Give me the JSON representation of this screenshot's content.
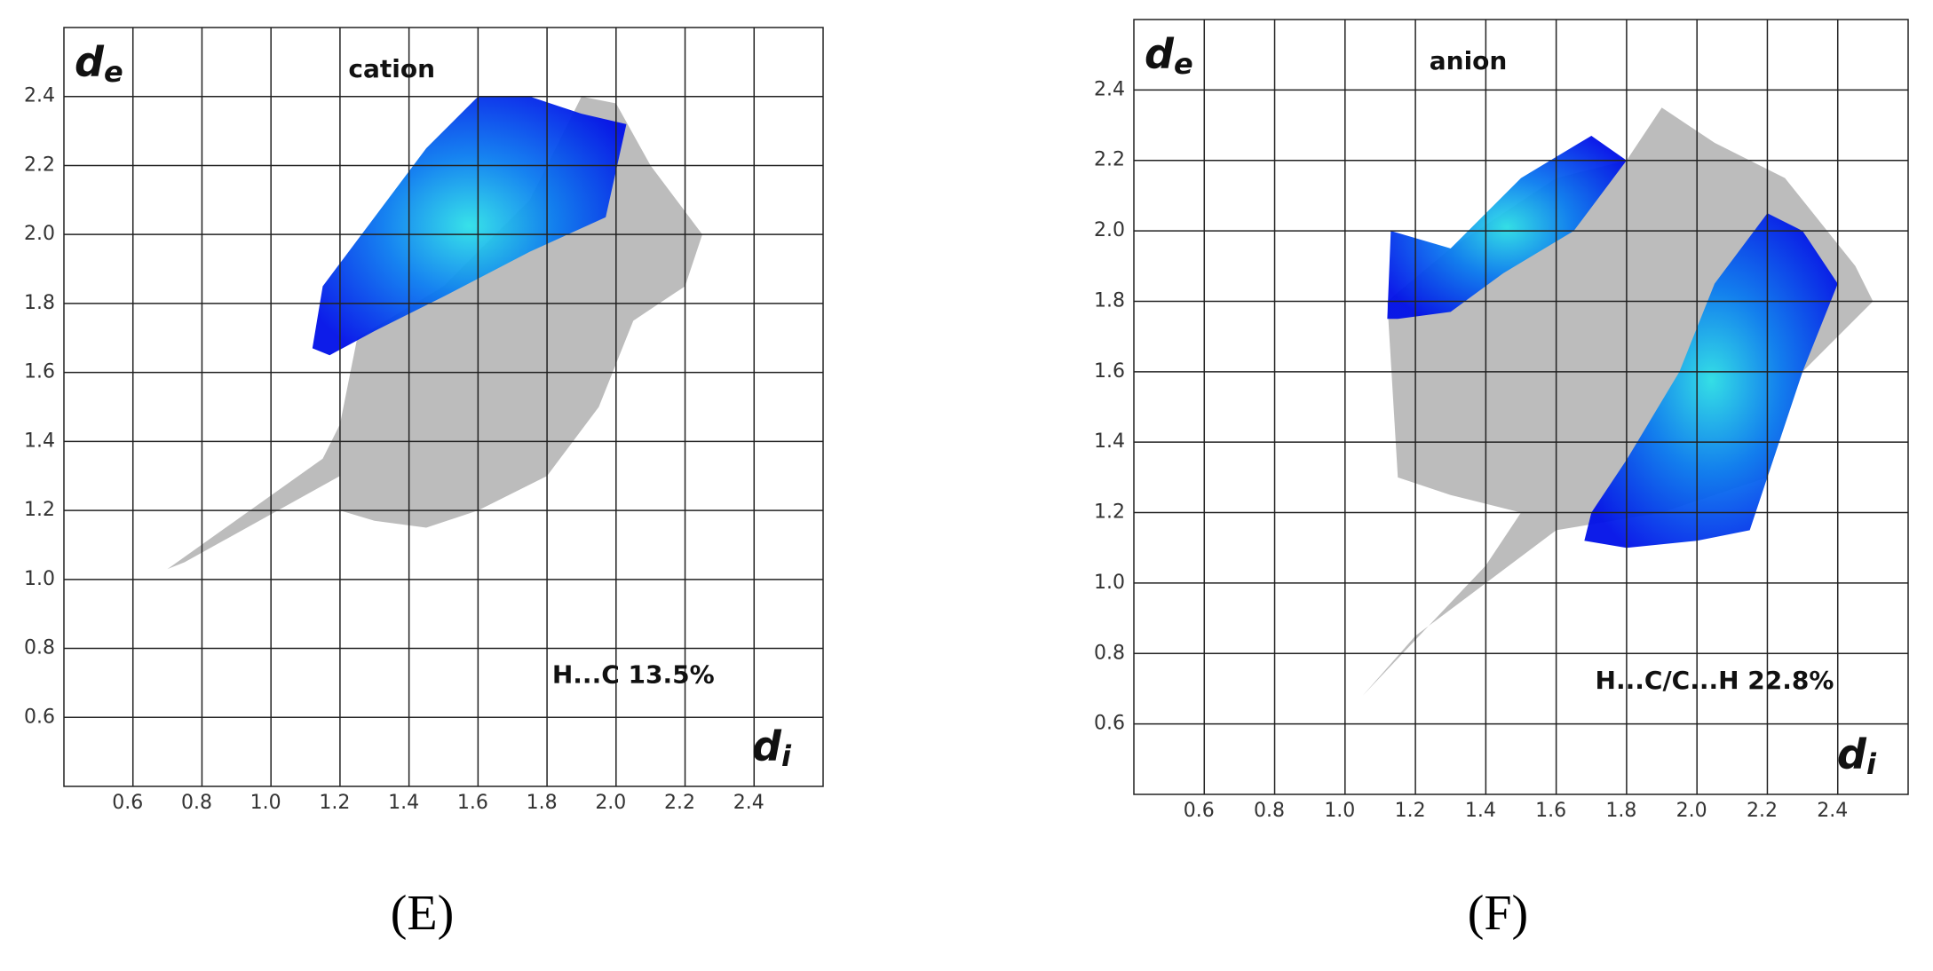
{
  "chart_data": [
    {
      "type": "fingerprint",
      "panel_label": "(E)",
      "annotation": "cation",
      "note": "H...C 13.5%",
      "xlabel": {
        "main": "d",
        "sub": "i"
      },
      "ylabel": {
        "main": "d",
        "sub": "e"
      },
      "xlim": [
        0.4,
        2.6
      ],
      "ylim": [
        0.4,
        2.6
      ],
      "xticks": [
        0.6,
        0.8,
        {
          "value": 1,
          "label": "1.0"
        },
        1.2,
        1.4,
        1.6,
        1.8,
        {
          "value": 2,
          "label": "2.0"
        },
        2.2,
        2.4
      ],
      "yticks": [
        0.6,
        0.8,
        {
          "value": 1,
          "label": "1.0"
        },
        1.2,
        1.4,
        1.6,
        1.8,
        {
          "value": 2,
          "label": "2.0"
        },
        2.2,
        2.4
      ],
      "grid": true
    },
    {
      "type": "fingerprint",
      "panel_label": "(F)",
      "annotation": "anion",
      "note": "H...C/C...H 22.8%",
      "xlabel": {
        "main": "d",
        "sub": "i"
      },
      "ylabel": {
        "main": "d",
        "sub": "e"
      },
      "xlim": [
        0.4,
        2.6
      ],
      "ylim": [
        0.4,
        2.6
      ],
      "xticks": [
        0.6,
        0.8,
        {
          "value": 1,
          "label": "1.0"
        },
        1.2,
        1.4,
        1.6,
        1.8,
        {
          "value": 2,
          "label": "2.0"
        },
        2.2,
        2.4
      ],
      "yticks": [
        0.6,
        0.8,
        {
          "value": 1,
          "label": "1.0"
        },
        1.2,
        1.4,
        1.6,
        1.8,
        {
          "value": 2,
          "label": "2.0"
        },
        2.2,
        2.4
      ],
      "grid": true
    }
  ]
}
